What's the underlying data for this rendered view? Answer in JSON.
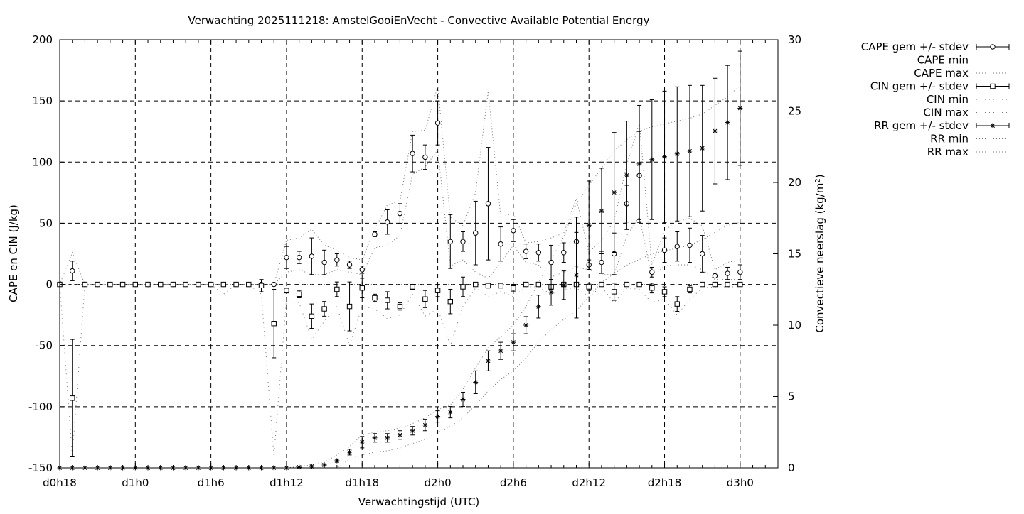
{
  "chart_data": {
    "type": "scatter",
    "title": "Verwachting 2025111218: AmstelGooiEnVecht - Convective Available Potential Energy",
    "xlabel": "Verwachtingstijd (UTC)",
    "ylabel": "CAPE en CIN (J/kg)",
    "y2label_main": "Convectieve neerslag (kg/m",
    "y2label_sup": "2",
    "y2label_end": ")",
    "xlim": [
      18,
      75
    ],
    "ylim": [
      -150,
      200
    ],
    "y2lim": [
      0,
      30
    ],
    "x_ticks": [
      {
        "x": 18,
        "label": "d0h18"
      },
      {
        "x": 24,
        "label": "d1h0"
      },
      {
        "x": 30,
        "label": "d1h6"
      },
      {
        "x": 36,
        "label": "d1h12"
      },
      {
        "x": 42,
        "label": "d1h18"
      },
      {
        "x": 48,
        "label": "d2h0"
      },
      {
        "x": 54,
        "label": "d2h6"
      },
      {
        "x": 60,
        "label": "d2h12"
      },
      {
        "x": 66,
        "label": "d2h18"
      },
      {
        "x": 72,
        "label": "d3h0"
      }
    ],
    "y_ticks": [
      -150,
      -100,
      -50,
      0,
      50,
      100,
      150,
      200
    ],
    "y2_ticks": [
      0,
      5,
      10,
      15,
      20,
      25,
      30
    ],
    "grid": true,
    "legend_position": "top-right outside",
    "legend": [
      {
        "label": "CAPE gem +/- stdev",
        "style": "circle-errorbar"
      },
      {
        "label": "CAPE min",
        "style": "dotted"
      },
      {
        "label": "CAPE max",
        "style": "dotted"
      },
      {
        "label": "CIN gem +/- stdev",
        "style": "square-errorbar"
      },
      {
        "label": "CIN min",
        "style": "dotted-sparse"
      },
      {
        "label": "CIN max",
        "style": "dotted-sparse"
      },
      {
        "label": "RR gem +/- stdev",
        "style": "star-errorbar"
      },
      {
        "label": "RR min",
        "style": "dotted"
      },
      {
        "label": "RR max",
        "style": "dotted"
      }
    ],
    "x": [
      18,
      19,
      20,
      21,
      22,
      23,
      24,
      25,
      26,
      27,
      28,
      29,
      30,
      31,
      32,
      33,
      34,
      35,
      36,
      37,
      38,
      39,
      40,
      41,
      42,
      43,
      44,
      45,
      46,
      47,
      48,
      49,
      50,
      51,
      52,
      53,
      54,
      55,
      56,
      57,
      58,
      59,
      60,
      61,
      62,
      63,
      64,
      65,
      66,
      67,
      68,
      69,
      70,
      71,
      72
    ],
    "cape": {
      "mean": [
        0,
        11,
        0,
        0,
        0,
        0,
        0,
        0,
        0,
        0,
        0,
        0,
        0,
        0,
        0,
        0,
        0,
        0,
        22,
        22,
        23,
        18,
        20,
        16,
        12,
        41,
        51,
        58,
        107,
        104,
        132,
        35,
        35,
        42,
        66,
        33,
        44,
        27,
        26,
        18,
        26,
        35,
        16,
        18,
        25,
        66,
        89,
        10,
        28,
        31,
        32,
        25,
        7,
        9,
        10
      ],
      "stdev": [
        0,
        8,
        0,
        0,
        0,
        0,
        0,
        0,
        0,
        0,
        0,
        0,
        0,
        0,
        0,
        0,
        0,
        0,
        9,
        5,
        15,
        10,
        5,
        3,
        3,
        2,
        10,
        8,
        15,
        10,
        18,
        22,
        8,
        26,
        46,
        14,
        9,
        6,
        7,
        14,
        8,
        20,
        4,
        9,
        17,
        15,
        36,
        4,
        10,
        12,
        14,
        15,
        1,
        5,
        6
      ],
      "min": [
        0,
        0,
        0,
        0,
        0,
        0,
        0,
        0,
        0,
        0,
        0,
        0,
        0,
        0,
        0,
        0,
        0,
        0,
        10,
        12,
        8,
        8,
        12,
        10,
        8,
        30,
        32,
        40,
        90,
        96,
        110,
        15,
        20,
        10,
        5,
        18,
        32,
        18,
        16,
        6,
        10,
        14,
        12,
        8,
        8,
        40,
        55,
        6,
        15,
        16,
        16,
        12,
        4,
        4,
        4
      ],
      "max": [
        0,
        26,
        0,
        0,
        0,
        0,
        0,
        0,
        0,
        0,
        0,
        0,
        0,
        0,
        0,
        0,
        0,
        0,
        36,
        38,
        45,
        32,
        28,
        22,
        20,
        45,
        65,
        68,
        125,
        126,
        162,
        55,
        48,
        75,
        158,
        55,
        58,
        34,
        35,
        38,
        42,
        70,
        26,
        36,
        52,
        98,
        132,
        16,
        44,
        52,
        54,
        48,
        12,
        18,
        20
      ]
    },
    "cin": {
      "mean": [
        0,
        -93,
        0,
        0,
        0,
        0,
        0,
        0,
        0,
        0,
        0,
        0,
        0,
        0,
        0,
        0,
        -1,
        -32,
        -5,
        -8,
        -26,
        -20,
        -4,
        -18,
        -3,
        -11,
        -13,
        -18,
        -2,
        -12,
        -5,
        -14,
        -2,
        0,
        -1,
        -1,
        -3,
        0,
        0,
        -2,
        0,
        0,
        -2,
        0,
        -6,
        0,
        0,
        -3,
        -6,
        -16,
        -4,
        0,
        0,
        0,
        0
      ],
      "stdev": [
        0,
        48,
        0,
        0,
        0,
        0,
        0,
        0,
        0,
        0,
        0,
        0,
        0,
        0,
        0,
        0,
        5,
        28,
        2,
        3,
        10,
        6,
        6,
        20,
        8,
        3,
        7,
        3,
        2,
        7,
        5,
        10,
        8,
        0,
        2,
        2,
        3,
        0,
        0,
        2,
        0,
        0,
        3,
        0,
        7,
        0,
        0,
        4,
        4,
        6,
        3,
        0,
        0,
        0,
        0
      ],
      "min": [
        0,
        -140,
        0,
        0,
        0,
        0,
        0,
        0,
        0,
        0,
        0,
        0,
        0,
        -8,
        0,
        0,
        -8,
        -140,
        -12,
        -15,
        -45,
        -30,
        -18,
        -50,
        -18,
        -20,
        -28,
        -25,
        -8,
        -26,
        -20,
        -50,
        -18,
        -3,
        -10,
        -6,
        -10,
        -2,
        -2,
        -8,
        -4,
        -3,
        -10,
        -2,
        -15,
        -3,
        -4,
        -15,
        -12,
        -25,
        -12,
        -3,
        -2,
        -2,
        -2
      ],
      "max": [
        0,
        0,
        0,
        0,
        0,
        0,
        0,
        0,
        0,
        0,
        0,
        0,
        0,
        0,
        0,
        0,
        0,
        0,
        0,
        0,
        0,
        0,
        0,
        0,
        0,
        0,
        0,
        0,
        0,
        0,
        0,
        0,
        0,
        0,
        0,
        0,
        0,
        0,
        0,
        0,
        0,
        0,
        0,
        0,
        0,
        0,
        0,
        0,
        0,
        0,
        0,
        0,
        0,
        0,
        0
      ]
    },
    "rr": {
      "mean": [
        0,
        0,
        0,
        0,
        0,
        0,
        0,
        0,
        0,
        0,
        0,
        0,
        0,
        0,
        0,
        0,
        0,
        0,
        0,
        0.05,
        0.1,
        0.2,
        0.5,
        1.1,
        1.8,
        2.1,
        2.1,
        2.3,
        2.6,
        3.0,
        3.6,
        3.9,
        4.8,
        6.0,
        7.5,
        8.2,
        8.8,
        10.0,
        11.3,
        12.3,
        12.8,
        13.5,
        17.0,
        18.0,
        19.3,
        20.5,
        21.3,
        21.6,
        21.8,
        22.0,
        22.2,
        22.4,
        23.6,
        24.2,
        25.2
      ],
      "stdev": [
        0,
        0,
        0,
        0,
        0,
        0,
        0,
        0,
        0,
        0,
        0,
        0,
        0,
        0,
        0,
        0,
        0,
        0,
        0,
        0,
        0,
        0,
        0.1,
        0.2,
        0.4,
        0.3,
        0.3,
        0.3,
        0.3,
        0.4,
        0.4,
        0.4,
        0.5,
        0.8,
        0.7,
        0.6,
        0.6,
        0.6,
        0.8,
        0.9,
        1.0,
        3.0,
        3.1,
        3.0,
        4.2,
        3.8,
        4.1,
        4.2,
        4.6,
        4.7,
        4.6,
        4.4,
        3.7,
        4.0,
        4.0
      ],
      "min": [
        0,
        0,
        0,
        0,
        0,
        0,
        0,
        0,
        0,
        0,
        0,
        0,
        0,
        0,
        0,
        0,
        0,
        0,
        0,
        0,
        0,
        0,
        0,
        0.6,
        0.9,
        1.1,
        1.2,
        1.4,
        1.7,
        2.0,
        2.5,
        2.9,
        3.5,
        4.4,
        5.4,
        6.2,
        6.8,
        7.7,
        8.8,
        9.7,
        10.4,
        11.0,
        12.0,
        13.0,
        13.6,
        14.2,
        14.6,
        15.0,
        15.2,
        15.4,
        15.6,
        16.0,
        16.5,
        17.0,
        17.2
      ],
      "max": [
        0,
        0,
        0,
        0,
        0,
        0,
        0,
        0,
        0,
        0,
        0,
        0,
        0,
        0,
        0,
        0,
        0,
        0,
        0,
        0.1,
        0.2,
        0.4,
        0.9,
        1.5,
        2.3,
        2.5,
        2.6,
        2.8,
        3.1,
        3.5,
        4.1,
        4.4,
        5.5,
        7.0,
        8.4,
        9.2,
        10.0,
        11.3,
        13.0,
        14.6,
        16.2,
        18.5,
        19.8,
        21.0,
        22.2,
        23.0,
        23.6,
        23.9,
        24.1,
        24.3,
        24.5,
        24.8,
        25.4,
        26.0,
        26.8
      ]
    }
  }
}
